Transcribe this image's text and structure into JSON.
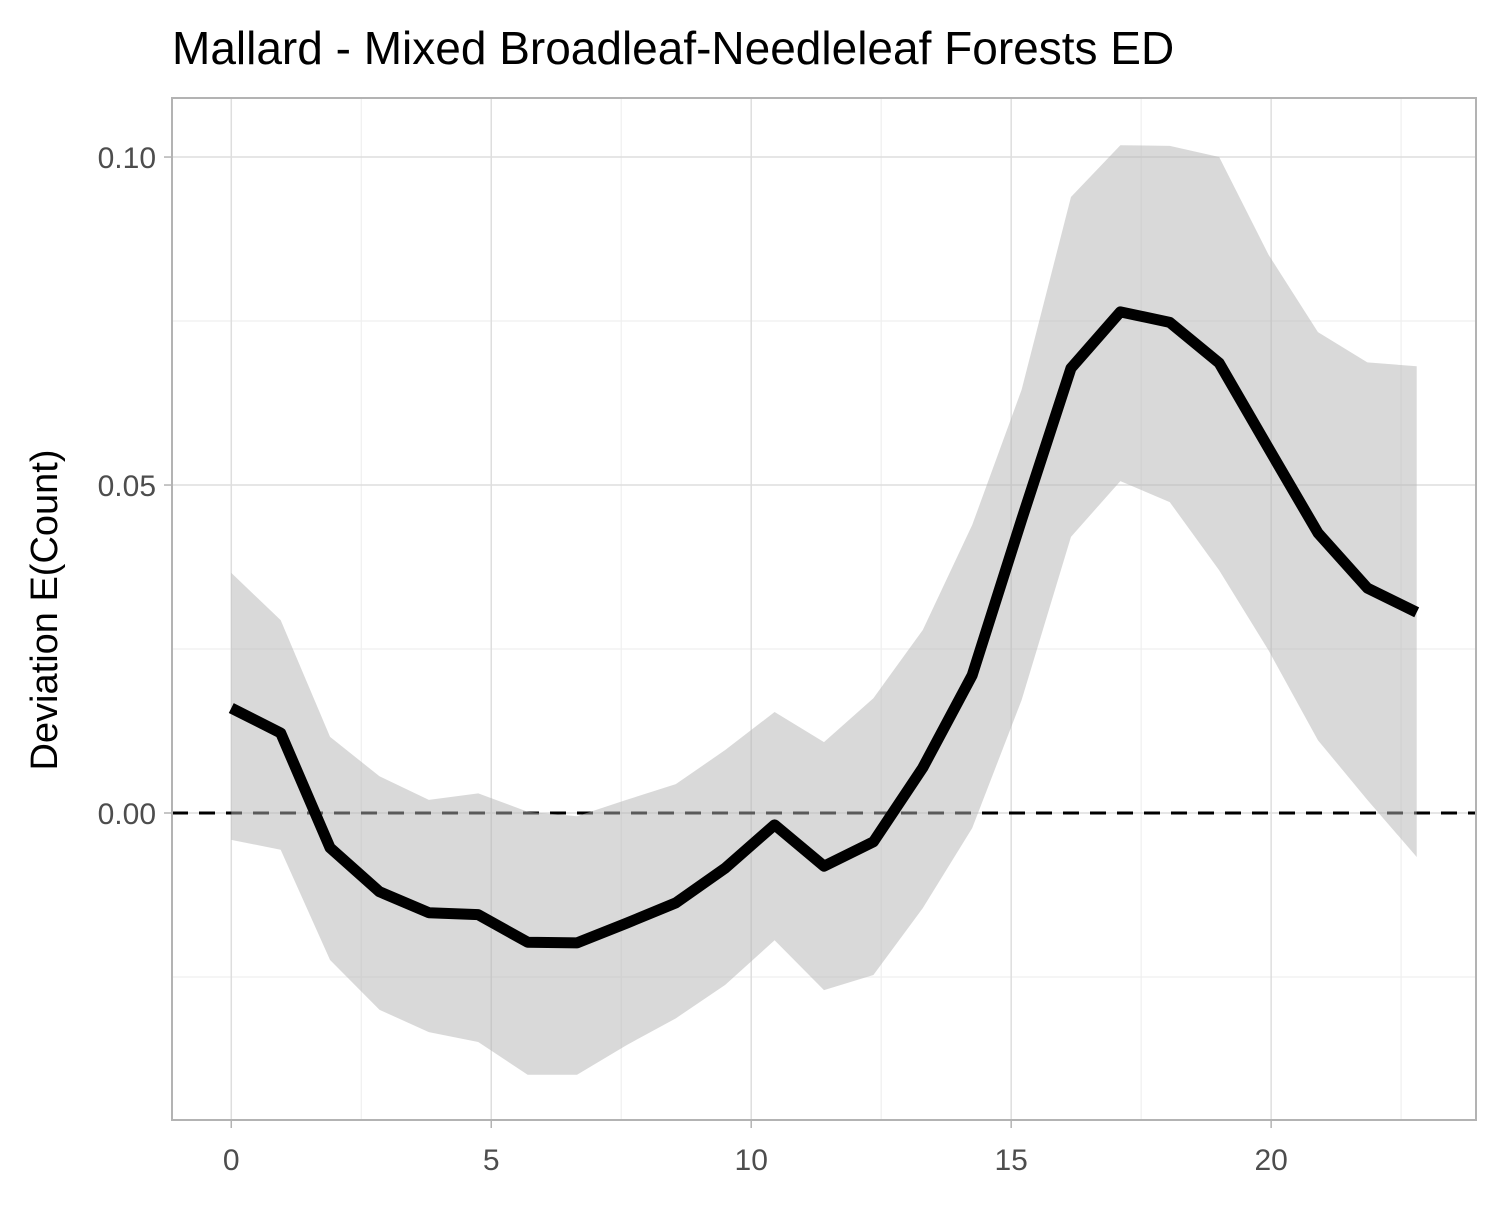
{
  "chart_data": {
    "type": "line",
    "title": "Mallard - Mixed Broadleaf-Needleleaf Forests ED",
    "y_label": "Deviation E(Count)",
    "x": [
      0,
      0.95,
      1.9,
      2.85,
      3.8,
      4.75,
      5.7,
      6.65,
      7.6,
      8.55,
      9.5,
      10.45,
      11.4,
      12.35,
      13.3,
      14.25,
      15.2,
      16.15,
      17.1,
      18.05,
      19,
      19.95,
      20.9,
      21.85,
      22.8
    ],
    "values": [
      0.016,
      0.0122,
      -0.0053,
      -0.012,
      -0.0152,
      -0.0155,
      -0.0197,
      -0.0198,
      -0.0168,
      -0.0137,
      -0.0084,
      -0.0018,
      -0.0081,
      -0.0044,
      0.0069,
      0.021,
      0.0447,
      0.0678,
      0.0764,
      0.0748,
      0.0686,
      0.0556,
      0.0427,
      0.0343,
      0.0306
    ],
    "upper": [
      0.0366,
      0.0294,
      0.0116,
      0.0056,
      0.002,
      0.003,
      0.0002,
      -0.0005,
      0.002,
      0.0044,
      0.0096,
      0.0154,
      0.0108,
      0.0175,
      0.0279,
      0.0439,
      0.0645,
      0.0939,
      0.1018,
      0.1017,
      0.1,
      0.0851,
      0.0733,
      0.0687,
      0.0681
    ],
    "lower": [
      -0.0041,
      -0.0056,
      -0.0224,
      -0.03,
      -0.0334,
      -0.0349,
      -0.0399,
      -0.0399,
      -0.0354,
      -0.0313,
      -0.0262,
      -0.0194,
      -0.027,
      -0.0247,
      -0.0145,
      -0.0023,
      0.0172,
      0.0421,
      0.0506,
      0.0474,
      0.037,
      0.0248,
      0.0111,
      0.002,
      -0.0067
    ],
    "color": "#000000",
    "band_color": "#b3b3b3",
    "band_opacity": 0.5,
    "xlim": [
      -1.14,
      23.94
    ],
    "ylim": [
      -0.0468,
      0.109
    ],
    "xticks": [
      0,
      5,
      10,
      15,
      20
    ],
    "yticks": [
      {
        "value": 0,
        "label": "0.00"
      },
      {
        "value": 0.05,
        "label": "0.05"
      },
      {
        "value": 0.1,
        "label": "0.10"
      }
    ],
    "xminor": [
      2.5,
      7.5,
      12.5,
      17.5,
      22.5
    ],
    "yminor": [
      -0.025,
      0.025,
      0.075
    ],
    "hline": 0,
    "grid": true
  }
}
